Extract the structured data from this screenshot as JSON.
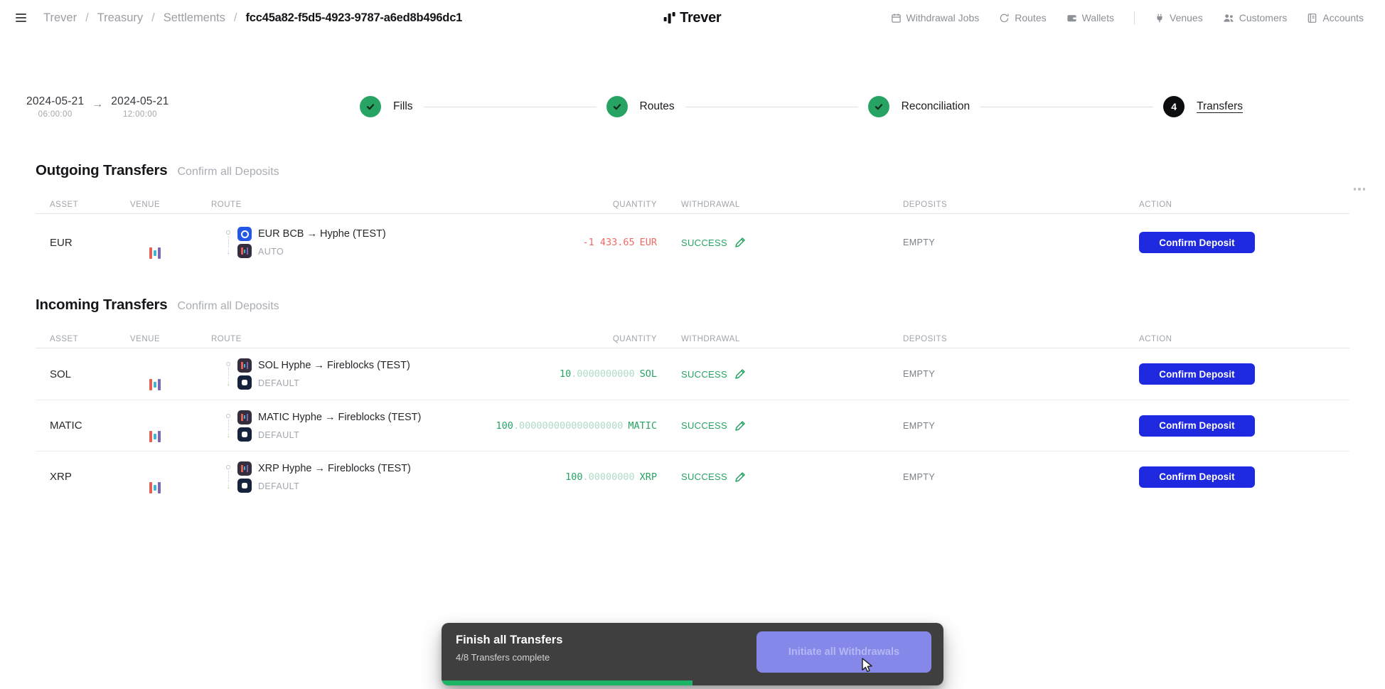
{
  "topbar": {
    "breadcrumb": {
      "items": [
        "Trever",
        "Treasury",
        "Settlements"
      ],
      "separator": "/",
      "current": "fcc45a82-f5d5-4923-9787-a6ed8b496dc1"
    },
    "logo": "Trever",
    "nav": {
      "withdrawal_jobs": "Withdrawal Jobs",
      "routes": "Routes",
      "wallets": "Wallets",
      "venues": "Venues",
      "customers": "Customers",
      "accounts": "Accounts"
    }
  },
  "stepper": {
    "from": {
      "date": "2024-05-21",
      "time": "06:00:00"
    },
    "to": {
      "date": "2024-05-21",
      "time": "12:00:00"
    },
    "arrow": "→",
    "steps": [
      {
        "label": "Fills",
        "state": "done"
      },
      {
        "label": "Routes",
        "state": "done"
      },
      {
        "label": "Reconciliation",
        "state": "done"
      },
      {
        "label": "Transfers",
        "state": "current",
        "badge": "4"
      }
    ]
  },
  "sections": [
    {
      "title": "Outgoing Transfers",
      "action_link": "Confirm all Deposits",
      "columns": {
        "asset": "ASSET",
        "venue": "VENUE",
        "route": "ROUTE",
        "quantity": "QUANTITY",
        "withdrawal": "WITHDRAWAL",
        "deposits": "DEPOSITS",
        "action": "ACTION"
      },
      "rows": [
        {
          "asset": "EUR",
          "venue": "Hyphe",
          "route_title": "EUR BCB → Hyphe (TEST)",
          "route_mode": "AUTO",
          "qty_main": "-1 433.65",
          "qty_zeros": "",
          "qty_unit": "EUR",
          "qty_tone": "negative",
          "withdrawal_status": "SUCCESS",
          "deposits": "EMPTY",
          "action_label": "Confirm Deposit"
        }
      ]
    },
    {
      "title": "Incoming Transfers",
      "action_link": "Confirm all Deposits",
      "columns": {
        "asset": "ASSET",
        "venue": "VENUE",
        "route": "ROUTE",
        "quantity": "QUANTITY",
        "withdrawal": "WITHDRAWAL",
        "deposits": "DEPOSITS",
        "action": "ACTION"
      },
      "rows": [
        {
          "asset": "SOL",
          "venue": "Hyphe",
          "route_title": "SOL Hyphe → Fireblocks (TEST)",
          "route_mode": "DEFAULT",
          "qty_main": "10",
          "qty_zeros": ".0000000000",
          "qty_unit": "SOL",
          "qty_tone": "positive",
          "withdrawal_status": "SUCCESS",
          "deposits": "EMPTY",
          "action_label": "Confirm Deposit"
        },
        {
          "asset": "MATIC",
          "venue": "Hyphe",
          "route_title": "MATIC Hyphe → Fireblocks (TEST)",
          "route_mode": "DEFAULT",
          "qty_main": "100",
          "qty_zeros": ".000000000000000000",
          "qty_unit": "MATIC",
          "qty_tone": "positive",
          "withdrawal_status": "SUCCESS",
          "deposits": "EMPTY",
          "action_label": "Confirm Deposit"
        },
        {
          "asset": "XRP",
          "venue": "Hyphe",
          "route_title": "XRP Hyphe → Fireblocks (TEST)",
          "route_mode": "DEFAULT",
          "qty_main": "100",
          "qty_zeros": ".00000000",
          "qty_unit": "XRP",
          "qty_tone": "positive",
          "withdrawal_status": "SUCCESS",
          "deposits": "EMPTY",
          "action_label": "Confirm Deposit"
        }
      ]
    }
  ],
  "toast": {
    "title": "Finish all Transfers",
    "subtitle": "4/8 Transfers complete",
    "button_label": "Initiate all Withdrawals",
    "progress_percent": 50
  },
  "colors": {
    "accent_blue": "#1f2ae0",
    "success_green": "#27a463",
    "negative_red": "#f16a62",
    "progress_green": "#1db465",
    "toast_bg": "#3f3f3f",
    "disabled_button_bg": "#8588e8",
    "step_done_green": "#27a463",
    "step_current_black": "#0c0d0f"
  }
}
